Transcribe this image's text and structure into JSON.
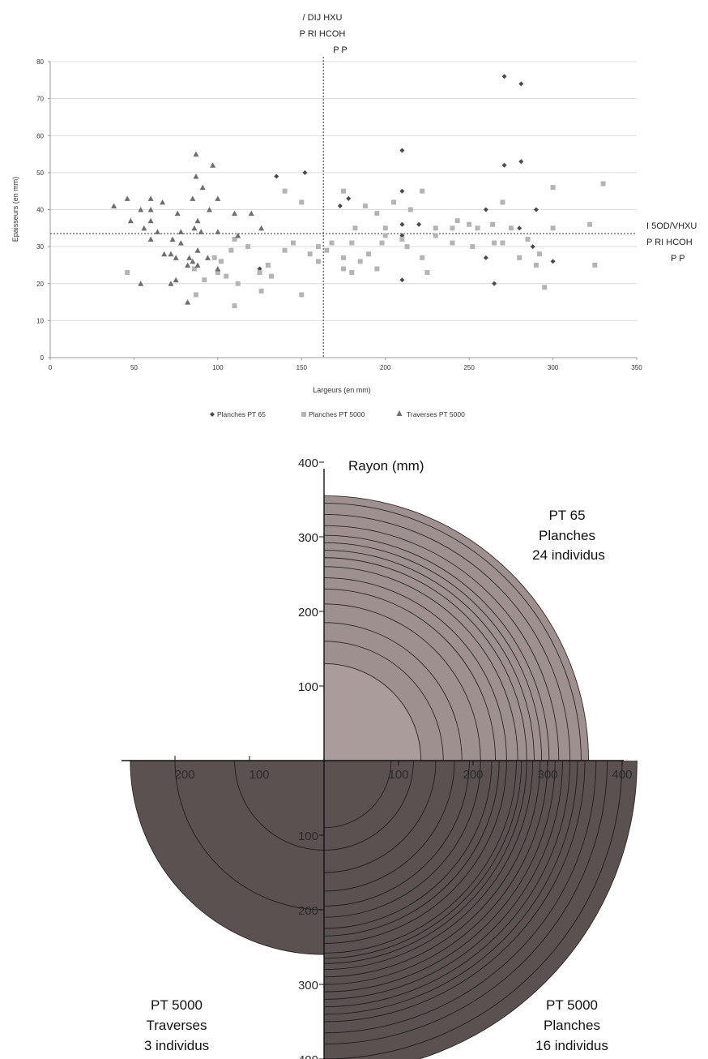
{
  "chart_data": [
    {
      "type": "scatter",
      "xlabel": "Largeurs (en mm)",
      "ylabel": "Epaisseurs (en mm)",
      "xlim": [
        0,
        350
      ],
      "ylim": [
        0,
        80
      ],
      "xticks": [
        0,
        50,
        100,
        150,
        200,
        250,
        300,
        350
      ],
      "yticks": [
        0,
        10,
        20,
        30,
        40,
        50,
        60,
        70,
        80
      ],
      "grid": "horizontal",
      "legend_position": "bottom",
      "mean_x": 163,
      "mean_y": 33.5,
      "annotation_vertical": [
        "/ DIJ HXU",
        "P RI HCOH",
        "P P"
      ],
      "annotation_horizontal": [
        "I 5OD/VHXU",
        "P RI HCOH",
        "P P"
      ],
      "series": [
        {
          "name": "Planches PT 65",
          "marker": "diamond",
          "color": "#4a4a4a",
          "points": [
            [
              271,
              76
            ],
            [
              281,
              74
            ],
            [
              210,
              56
            ],
            [
              271,
              52
            ],
            [
              281,
              53
            ],
            [
              135,
              49
            ],
            [
              152,
              50
            ],
            [
              210,
              45
            ],
            [
              178,
              43
            ],
            [
              173,
              41
            ],
            [
              260,
              40
            ],
            [
              290,
              40
            ],
            [
              210,
              36
            ],
            [
              220,
              36
            ],
            [
              280,
              35
            ],
            [
              210,
              33
            ],
            [
              285,
              32
            ],
            [
              288,
              30
            ],
            [
              260,
              27
            ],
            [
              300,
              26
            ],
            [
              210,
              21
            ],
            [
              265,
              20
            ],
            [
              125,
              24
            ]
          ]
        },
        {
          "name": "Planches PT 5000",
          "marker": "square",
          "color": "#b4b4b4",
          "points": [
            [
              330,
              47
            ],
            [
              300,
              46
            ],
            [
              222,
              45
            ],
            [
              175,
              45
            ],
            [
              140,
              45
            ],
            [
              150,
              42
            ],
            [
              205,
              42
            ],
            [
              270,
              42
            ],
            [
              188,
              41
            ],
            [
              195,
              39
            ],
            [
              215,
              40
            ],
            [
              243,
              37
            ],
            [
              250,
              36
            ],
            [
              264,
              36
            ],
            [
              322,
              36
            ],
            [
              182,
              35
            ],
            [
              200,
              35
            ],
            [
              230,
              35
            ],
            [
              240,
              35
            ],
            [
              255,
              35
            ],
            [
              275,
              35
            ],
            [
              300,
              35
            ],
            [
              200,
              33
            ],
            [
              210,
              32
            ],
            [
              230,
              33
            ],
            [
              198,
              31
            ],
            [
              180,
              31
            ],
            [
              160,
              30
            ],
            [
              168,
              31
            ],
            [
              240,
              31
            ],
            [
              252,
              30
            ],
            [
              265,
              31
            ],
            [
              270,
              31
            ],
            [
              285,
              32
            ],
            [
              110,
              32
            ],
            [
              118,
              30
            ],
            [
              145,
              31
            ],
            [
              108,
              29
            ],
            [
              140,
              29
            ],
            [
              155,
              28
            ],
            [
              165,
              29
            ],
            [
              175,
              27
            ],
            [
              190,
              28
            ],
            [
              222,
              27
            ],
            [
              280,
              27
            ],
            [
              292,
              28
            ],
            [
              98,
              27
            ],
            [
              102,
              26
            ],
            [
              130,
              25
            ],
            [
              160,
              26
            ],
            [
              185,
              26
            ],
            [
              195,
              24
            ],
            [
              225,
              23
            ],
            [
              325,
              25
            ],
            [
              290,
              25
            ],
            [
              86,
              24
            ],
            [
              100,
              23
            ],
            [
              105,
              22
            ],
            [
              125,
              23
            ],
            [
              132,
              22
            ],
            [
              175,
              24
            ],
            [
              180,
              23
            ],
            [
              92,
              21
            ],
            [
              112,
              20
            ],
            [
              126,
              18
            ],
            [
              150,
              17
            ],
            [
              87,
              17
            ],
            [
              110,
              14
            ],
            [
              46,
              23
            ],
            [
              295,
              19
            ],
            [
              213,
              30
            ]
          ]
        },
        {
          "name": "Traverses PT 5000",
          "marker": "triangle",
          "color": "#6e6e6e",
          "points": [
            [
              87,
              55
            ],
            [
              97,
              52
            ],
            [
              91,
              46
            ],
            [
              87,
              49
            ],
            [
              100,
              43
            ],
            [
              85,
              43
            ],
            [
              38,
              41
            ],
            [
              46,
              43
            ],
            [
              60,
              43
            ],
            [
              67,
              42
            ],
            [
              54,
              40
            ],
            [
              60,
              40
            ],
            [
              76,
              39
            ],
            [
              95,
              40
            ],
            [
              110,
              39
            ],
            [
              120,
              39
            ],
            [
              48,
              37
            ],
            [
              60,
              37
            ],
            [
              88,
              37
            ],
            [
              86,
              35
            ],
            [
              90,
              34
            ],
            [
              56,
              35
            ],
            [
              64,
              34
            ],
            [
              78,
              34
            ],
            [
              100,
              34
            ],
            [
              112,
              33
            ],
            [
              126,
              35
            ],
            [
              60,
              32
            ],
            [
              73,
              32
            ],
            [
              78,
              31
            ],
            [
              68,
              28
            ],
            [
              72,
              28
            ],
            [
              75,
              27
            ],
            [
              83,
              27
            ],
            [
              88,
              29
            ],
            [
              94,
              27
            ],
            [
              85,
              26
            ],
            [
              88,
              25
            ],
            [
              82,
              25
            ],
            [
              100,
              24
            ],
            [
              72,
              20
            ],
            [
              75,
              21
            ],
            [
              54,
              20
            ],
            [
              82,
              15
            ]
          ]
        }
      ]
    },
    {
      "type": "semicircle-rings",
      "title": "Rayon (mm)",
      "rlim": [
        0,
        400
      ],
      "ticks_positive": [
        "100",
        "200",
        "300",
        "400"
      ],
      "ticks_negative": [
        "100",
        "200",
        "300",
        "400"
      ],
      "quadrants": [
        {
          "label_line1": "PT 65",
          "label_line2": "Planches",
          "label_line3": "24 individus",
          "fill": "#9e908f",
          "max_radius": 355,
          "radii": [
            130,
            160,
            185,
            210,
            230,
            245,
            260,
            272,
            282,
            292,
            302,
            315,
            330,
            345,
            355
          ]
        },
        {
          "label_line1": "PT 5000",
          "label_line2": "Planches",
          "label_line3": "16 individus",
          "fill": "#5b5151",
          "max_radius": 420,
          "radii": [
            90,
            120,
            150,
            175,
            195,
            210,
            225,
            235,
            245,
            258,
            265,
            272,
            280,
            290,
            300,
            310,
            320,
            330,
            340,
            350,
            365,
            380,
            400,
            420
          ]
        },
        {
          "label_line1": "PT 5000",
          "label_line2": "Traverses",
          "label_line3": "3 individus",
          "fill": "#5b5151",
          "max_radius": 260,
          "radii": [
            120,
            200,
            260
          ]
        }
      ]
    }
  ]
}
